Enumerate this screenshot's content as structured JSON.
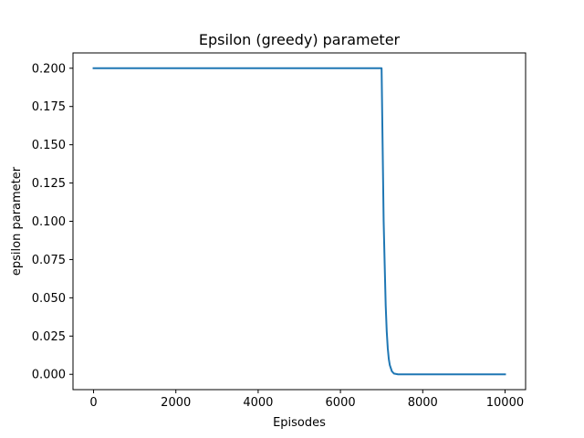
{
  "chart_data": {
    "type": "line",
    "title": "Epsilon (greedy) parameter",
    "xlabel": "Episodes",
    "ylabel": "epsilon parameter",
    "xlim": [
      -500,
      10500
    ],
    "ylim": [
      -0.01,
      0.21
    ],
    "xticks": [
      0,
      2000,
      4000,
      6000,
      8000,
      10000
    ],
    "xtick_labels": [
      "0",
      "2000",
      "4000",
      "6000",
      "8000",
      "10000"
    ],
    "yticks": [
      0.0,
      0.025,
      0.05,
      0.075,
      0.1,
      0.125,
      0.15,
      0.175,
      0.2
    ],
    "ytick_labels": [
      "0.000",
      "0.025",
      "0.050",
      "0.075",
      "0.100",
      "0.125",
      "0.150",
      "0.175",
      "0.200"
    ],
    "grid": false,
    "legend": "none",
    "series": [
      {
        "color": "#1f77b4",
        "x": [
          0,
          7000,
          7010,
          7030,
          7050,
          7075,
          7100,
          7125,
          7150,
          7175,
          7200,
          7250,
          7300,
          7400,
          8000,
          10000
        ],
        "y": [
          0.2,
          0.2,
          0.18,
          0.14,
          0.1,
          0.072,
          0.045,
          0.028,
          0.017,
          0.01,
          0.006,
          0.002,
          0.0005,
          0.0,
          0.0,
          0.0
        ]
      }
    ]
  }
}
